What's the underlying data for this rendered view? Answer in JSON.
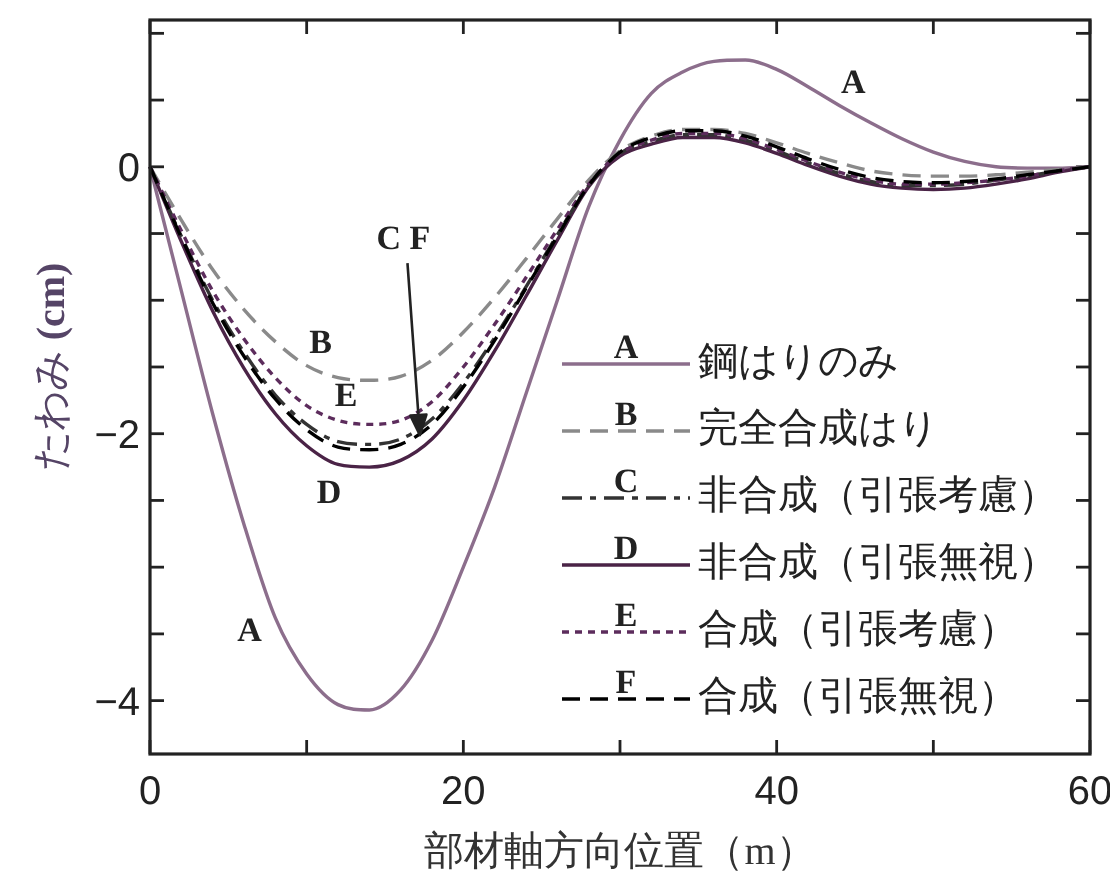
{
  "chart_data": {
    "type": "line",
    "xlabel": "部材軸方向位置（m）",
    "ylabel": "たわみ **(cm)**",
    "x": [
      0,
      2,
      4,
      6,
      8,
      10,
      12,
      14,
      16,
      18,
      20,
      22,
      24,
      26,
      28,
      30,
      32,
      34,
      36,
      38,
      40,
      42,
      44,
      46,
      48,
      50,
      52,
      54,
      56,
      58,
      60
    ],
    "xlim": [
      0,
      60
    ],
    "ylim": [
      -4.4,
      1.1
    ],
    "xticks": [
      0,
      {
        "value": 10,
        "label": null
      },
      20,
      {
        "value": 30,
        "label": null
      },
      40,
      {
        "value": 50,
        "label": null
      },
      60
    ],
    "yticks": [
      -4,
      {
        "value": -3.5,
        "label": null
      },
      {
        "value": -3,
        "label": null
      },
      {
        "value": -2.5,
        "label": null
      },
      -2,
      {
        "value": -1.5,
        "label": null
      },
      {
        "value": -1,
        "label": null
      },
      {
        "value": -0.5,
        "label": null
      },
      0,
      {
        "value": 0.5,
        "label": null
      },
      {
        "value": 1,
        "label": null
      }
    ],
    "legend": "bottom right",
    "series": [
      {
        "name": "鋼はりのみ",
        "color": "#8c6e8c",
        "line_style": "solid",
        "values": [
          0,
          -0.93,
          -1.85,
          -2.68,
          -3.38,
          -3.8,
          -4.03,
          -4.07,
          -3.92,
          -3.55,
          -3.0,
          -2.4,
          -1.7,
          -1.0,
          -0.3,
          0.2,
          0.55,
          0.71,
          0.79,
          0.8,
          0.73,
          0.6,
          0.46,
          0.33,
          0.21,
          0.11,
          0.04,
          0,
          -0.01,
          -0.01,
          0
        ]
      },
      {
        "name": "完全合成はり",
        "color": "#8a8a8a",
        "line_style": "dashed",
        "values": [
          0,
          -0.4,
          -0.77,
          -1.07,
          -1.31,
          -1.49,
          -1.58,
          -1.6,
          -1.57,
          -1.45,
          -1.24,
          -0.98,
          -0.69,
          -0.39,
          -0.1,
          0.12,
          0.23,
          0.28,
          0.28,
          0.25,
          0.18,
          0.1,
          0.03,
          -0.03,
          -0.06,
          -0.07,
          -0.07,
          -0.06,
          -0.04,
          -0.02,
          0
        ]
      },
      {
        "name": "非合成（引張考慮）",
        "color": "#333333",
        "line_style": "dashdot",
        "values": [
          0,
          -0.52,
          -1.0,
          -1.39,
          -1.71,
          -1.93,
          -2.06,
          -2.08,
          -2.04,
          -1.89,
          -1.62,
          -1.28,
          -0.9,
          -0.51,
          -0.14,
          0.1,
          0.19,
          0.24,
          0.24,
          0.2,
          0.12,
          0.03,
          -0.05,
          -0.11,
          -0.14,
          -0.14,
          -0.13,
          -0.1,
          -0.07,
          -0.03,
          0
        ]
      },
      {
        "name": "非合成（引張無視）",
        "color": "#4a2346",
        "line_style": "solid",
        "values": [
          0,
          -0.56,
          -1.08,
          -1.51,
          -1.85,
          -2.09,
          -2.23,
          -2.25,
          -2.2,
          -2.04,
          -1.75,
          -1.38,
          -0.97,
          -0.55,
          -0.15,
          0.08,
          0.17,
          0.22,
          0.22,
          0.18,
          0.1,
          0.01,
          -0.07,
          -0.13,
          -0.16,
          -0.17,
          -0.16,
          -0.13,
          -0.09,
          -0.04,
          0
        ]
      },
      {
        "name": "合成（引張考慮）",
        "color": "#5c2c5c",
        "line_style": "dotted",
        "values": [
          0,
          -0.48,
          -0.93,
          -1.29,
          -1.58,
          -1.79,
          -1.9,
          -1.93,
          -1.9,
          -1.76,
          -1.5,
          -1.18,
          -0.83,
          -0.47,
          -0.13,
          0.1,
          0.2,
          0.25,
          0.25,
          0.21,
          0.13,
          0.04,
          -0.04,
          -0.1,
          -0.13,
          -0.13,
          -0.12,
          -0.1,
          -0.07,
          -0.03,
          0
        ]
      },
      {
        "name": "合成（引張無視）",
        "color": "#000000",
        "line_style": "dashed",
        "values": [
          0,
          -0.53,
          -1.02,
          -1.42,
          -1.74,
          -1.97,
          -2.1,
          -2.12,
          -2.08,
          -1.93,
          -1.65,
          -1.3,
          -0.91,
          -0.52,
          -0.14,
          0.11,
          0.22,
          0.27,
          0.27,
          0.23,
          0.15,
          0.06,
          -0.02,
          -0.08,
          -0.11,
          -0.12,
          -0.11,
          -0.09,
          -0.06,
          -0.03,
          0
        ]
      }
    ],
    "annotations": [
      {
        "text": "A",
        "x": 8,
        "y": -3.38
      },
      {
        "text": "B",
        "x": 10,
        "y": -1.49
      },
      {
        "text": "E",
        "x": 12,
        "y": -1.9
      },
      {
        "text": "D",
        "x": 12,
        "y": -2.23
      },
      {
        "text": "A",
        "x": 44,
        "y": 0.46
      },
      {
        "text": "C F",
        "x": 17.2,
        "y": -1.98
      },
      "A",
      "B",
      "C",
      "D",
      "E",
      "F"
    ]
  }
}
